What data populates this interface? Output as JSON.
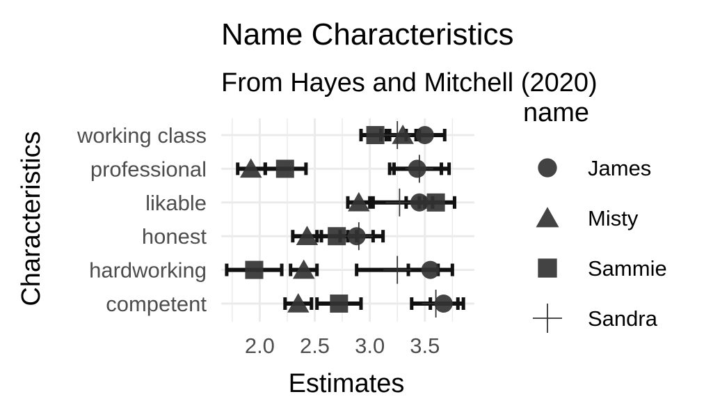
{
  "chart_data": {
    "type": "dot-errorbar",
    "title": "Name Characteristics",
    "subtitle": "From Hayes and Mitchell (2020)",
    "xlabel": "Estimates",
    "ylabel": "Characteristics",
    "xlim": [
      1.65,
      3.95
    ],
    "x_ticks": [
      2.0,
      2.5,
      3.0,
      3.5
    ],
    "x_tick_labels": [
      "2.0",
      "2.5",
      "3.0",
      "3.5"
    ],
    "categories": [
      "working class",
      "professional",
      "likable",
      "honest",
      "hardworking",
      "competent"
    ],
    "legend_title": "name",
    "legend_position": "right",
    "grid": true,
    "point_color": "#333333",
    "errorbar_color": "#111111",
    "series": [
      {
        "name": "James",
        "shape": "circle",
        "values": [
          3.5,
          3.43,
          3.45,
          2.88,
          3.55,
          3.67
        ],
        "lower": [
          3.33,
          3.22,
          3.33,
          2.73,
          3.35,
          3.55
        ],
        "upper": [
          3.68,
          3.65,
          3.57,
          3.03,
          3.75,
          3.8
        ]
      },
      {
        "name": "Misty",
        "shape": "triangle",
        "values": [
          3.3,
          1.92,
          2.9,
          2.43,
          2.4,
          2.35
        ],
        "lower": [
          3.15,
          1.8,
          2.8,
          2.3,
          2.28,
          2.23
        ],
        "upper": [
          3.45,
          2.05,
          3.0,
          2.56,
          2.52,
          2.47
        ]
      },
      {
        "name": "Sammie",
        "shape": "square",
        "values": [
          3.05,
          2.23,
          3.6,
          2.7,
          1.95,
          2.72
        ],
        "lower": [
          2.92,
          2.05,
          3.45,
          2.52,
          1.7,
          2.52
        ],
        "upper": [
          3.18,
          2.42,
          3.77,
          2.88,
          2.2,
          2.92
        ]
      },
      {
        "name": "Sandra",
        "shape": "plus",
        "values": [
          3.25,
          3.45,
          3.27,
          2.9,
          3.25,
          3.6
        ],
        "lower": [
          3.1,
          3.18,
          3.03,
          2.8,
          2.88,
          3.38
        ],
        "upper": [
          3.42,
          3.72,
          3.5,
          3.12,
          3.62,
          3.85
        ]
      }
    ]
  }
}
